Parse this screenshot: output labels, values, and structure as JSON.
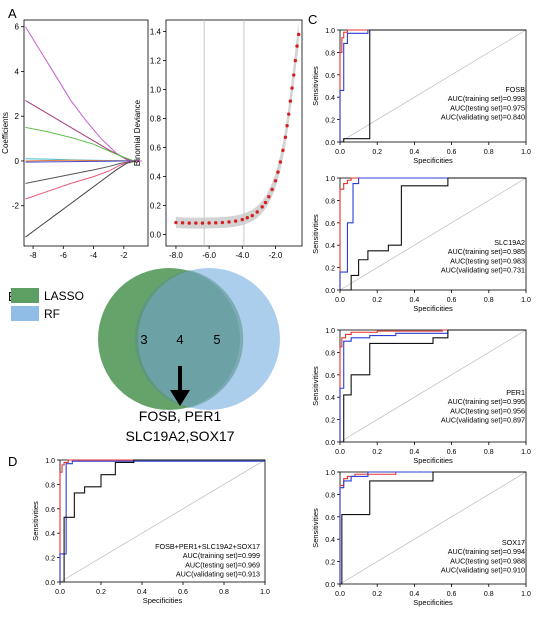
{
  "panels": {
    "a": "A",
    "b": "B",
    "c": "C",
    "d": "D"
  },
  "colors": {
    "red": "#e8322b",
    "blue": "#2c3fd6",
    "black": "#111111",
    "lasso": "#5d9e62",
    "rf": "#8fbde6",
    "ci_band": "#c8c8c8",
    "deviance": "#d62020"
  },
  "chart_data": [
    {
      "id": "lasso_coefficients",
      "type": "line",
      "title": "",
      "xlabel": "",
      "ylabel": "Coefficients",
      "xlim": [
        -8.6,
        -0.4
      ],
      "ylim": [
        -3.8,
        6.3
      ],
      "xticks": [
        -8,
        -6,
        -4,
        -2
      ],
      "yticks": [
        -2,
        0,
        2,
        4,
        6
      ],
      "grid": false,
      "series": [
        {
          "color": "#c85fd2",
          "x": [
            -8.5,
            -7.5,
            -6.5,
            -5.5,
            -4.5,
            -3.5,
            -2.5,
            -1.8,
            -1.2,
            -0.8
          ],
          "values": [
            6.0,
            4.9,
            3.8,
            2.7,
            1.8,
            1.0,
            0.35,
            0.05,
            0.0,
            0.0
          ]
        },
        {
          "color": "#a83a78",
          "x": [
            -8.5,
            -7,
            -5.5,
            -4,
            -3,
            -2,
            -1.5,
            -1
          ],
          "values": [
            2.7,
            2.1,
            1.5,
            0.9,
            0.5,
            0.15,
            0.02,
            0.0
          ]
        },
        {
          "color": "#5fbf4a",
          "x": [
            -8.5,
            -7,
            -5.5,
            -4,
            -3,
            -2.3,
            -1.8,
            -1.3
          ],
          "values": [
            1.5,
            1.3,
            1.05,
            0.75,
            0.45,
            0.25,
            0.12,
            0.0
          ]
        },
        {
          "color": "#3fbfd0",
          "x": [
            -8.5,
            -7,
            -5.5,
            -4,
            -3,
            -2,
            -1.3
          ],
          "values": [
            0.1,
            0.08,
            0.05,
            0.03,
            0.02,
            0.01,
            0.0
          ]
        },
        {
          "color": "#e07a3a",
          "x": [
            -8.5,
            -7,
            -5.5,
            -4,
            -3,
            -2,
            -1.2
          ],
          "values": [
            0.0,
            0.02,
            0.03,
            0.02,
            0.01,
            0.01,
            0.0
          ]
        },
        {
          "color": "#4a4ad0",
          "x": [
            -8.5,
            -7,
            -5.5,
            -4,
            -3,
            -2,
            -1.2
          ],
          "values": [
            -0.05,
            -0.04,
            -0.03,
            -0.02,
            -0.01,
            0.0,
            0.0
          ]
        },
        {
          "color": "#555555",
          "x": [
            -8.5,
            -7,
            -5.5,
            -4,
            -3,
            -2.2,
            -1.7,
            -1.2
          ],
          "values": [
            -1.0,
            -0.8,
            -0.6,
            -0.4,
            -0.25,
            -0.1,
            -0.05,
            0.0
          ]
        },
        {
          "color": "#e85a78",
          "x": [
            -8.5,
            -7,
            -5.5,
            -4,
            -3,
            -2.3,
            -1.8,
            -1.3
          ],
          "values": [
            -1.7,
            -1.35,
            -1.0,
            -0.7,
            -0.45,
            -0.2,
            -0.08,
            0.0
          ]
        },
        {
          "color": "#444444",
          "x": [
            -8.5,
            -7.5,
            -6.5,
            -5.5,
            -4.5,
            -3.5,
            -2.5,
            -1.8,
            -1.2
          ],
          "values": [
            -3.4,
            -2.9,
            -2.4,
            -1.9,
            -1.4,
            -0.9,
            -0.4,
            -0.1,
            0.0
          ]
        }
      ]
    },
    {
      "id": "binomial_deviance",
      "type": "scatter",
      "title": "",
      "xlabel": "",
      "ylabel": "Binomial Deviance",
      "xlim": [
        -8.6,
        -0.4
      ],
      "ylim": [
        -0.08,
        1.48
      ],
      "xticks": [
        -8,
        -6,
        -4,
        -2
      ],
      "yticks": [
        0.0,
        0.2,
        0.4,
        0.6,
        0.8,
        1.0,
        1.2,
        1.4
      ],
      "vlines": [
        -6.3,
        -3.9
      ],
      "band": 0.035,
      "x": [
        -8,
        -7.6,
        -7.2,
        -6.8,
        -6.4,
        -6,
        -5.6,
        -5.2,
        -4.8,
        -4.4,
        -4,
        -3.7,
        -3.4,
        -3.1,
        -2.8,
        -2.6,
        -2.4,
        -2.2,
        -2,
        -1.85,
        -1.7,
        -1.55,
        -1.4,
        -1.3,
        -1.2,
        -1.1,
        -1.0,
        -0.9,
        -0.8,
        -0.7,
        -0.6
      ],
      "values": [
        0.082,
        0.08,
        0.078,
        0.078,
        0.078,
        0.079,
        0.08,
        0.082,
        0.086,
        0.092,
        0.102,
        0.115,
        0.13,
        0.155,
        0.19,
        0.22,
        0.26,
        0.31,
        0.37,
        0.43,
        0.5,
        0.58,
        0.67,
        0.75,
        0.83,
        0.92,
        1.01,
        1.1,
        1.2,
        1.3,
        1.38
      ]
    },
    {
      "id": "roc_fosb",
      "type": "line",
      "title": "",
      "xlabel": "Specificities",
      "ylabel": "Sensitivities",
      "xlim": [
        0,
        1
      ],
      "ylim": [
        0,
        1
      ],
      "xticks": [
        0.0,
        0.2,
        0.4,
        0.6,
        0.8,
        1.0
      ],
      "yticks": [
        0.0,
        0.2,
        0.4,
        0.6,
        0.8,
        1.0
      ],
      "annotation": [
        "FOSB",
        "AUC(training set)=0.993",
        "AUC(testing set)=0.975",
        "AUC(validating set)=0.840"
      ],
      "series": [
        {
          "color": "#e8322b",
          "x": [
            0,
            0,
            0.01,
            0.01,
            0.02,
            0.02,
            0.04,
            0.04,
            1
          ],
          "values": [
            0,
            0.8,
            0.8,
            0.93,
            0.93,
            0.98,
            0.98,
            1,
            1
          ]
        },
        {
          "color": "#2c3fd6",
          "x": [
            0,
            0,
            0.02,
            0.02,
            0.04,
            0.04,
            0.15,
            0.15,
            1
          ],
          "values": [
            0,
            0.46,
            0.46,
            0.88,
            0.88,
            0.97,
            0.97,
            1,
            1
          ]
        },
        {
          "color": "#111111",
          "x": [
            0,
            0.02,
            0.02,
            0.16,
            0.16,
            1
          ],
          "values": [
            0,
            0,
            0.03,
            0.03,
            1,
            1
          ]
        }
      ]
    },
    {
      "id": "roc_slc19a2",
      "type": "line",
      "title": "",
      "xlabel": "Specificities",
      "ylabel": "Sensitivities",
      "xlim": [
        0,
        1
      ],
      "ylim": [
        0,
        1
      ],
      "xticks": [
        0.0,
        0.2,
        0.4,
        0.6,
        0.8,
        1.0
      ],
      "yticks": [
        0.0,
        0.2,
        0.4,
        0.6,
        0.8,
        1.0
      ],
      "annotation": [
        "SLC19A2",
        "AUC(training set)=0.985",
        "AUC(testing set)=0.983",
        "AUC(validating set)=0.731"
      ],
      "series": [
        {
          "color": "#e8322b",
          "x": [
            0,
            0,
            0.02,
            0.02,
            0.04,
            0.04,
            0.06,
            0.06,
            1
          ],
          "values": [
            0,
            0.9,
            0.9,
            0.95,
            0.95,
            0.98,
            0.98,
            1,
            1
          ]
        },
        {
          "color": "#2c3fd6",
          "x": [
            0,
            0,
            0.04,
            0.04,
            0.07,
            0.07,
            0.1,
            0.1,
            1
          ],
          "values": [
            0,
            0.16,
            0.16,
            0.6,
            0.6,
            0.95,
            0.95,
            1,
            1
          ]
        },
        {
          "color": "#111111",
          "x": [
            0,
            0.06,
            0.06,
            0.1,
            0.1,
            0.15,
            0.15,
            0.26,
            0.26,
            0.33,
            0.33,
            0.58,
            0.58,
            1
          ],
          "values": [
            0,
            0,
            0.13,
            0.13,
            0.27,
            0.27,
            0.35,
            0.35,
            0.4,
            0.4,
            0.93,
            0.93,
            1,
            1
          ]
        }
      ]
    },
    {
      "id": "roc_per1",
      "type": "line",
      "title": "",
      "xlabel": "Specificities",
      "ylabel": "Sensitivities",
      "xlim": [
        0,
        1
      ],
      "ylim": [
        0,
        1
      ],
      "xticks": [
        0.0,
        0.2,
        0.4,
        0.6,
        0.8,
        1.0
      ],
      "yticks": [
        0.0,
        0.2,
        0.4,
        0.6,
        0.8,
        1.0
      ],
      "annotation": [
        "PER1",
        "AUC(training set)=0.995",
        "AUC(testing set)=0.956",
        "AUC(validating set)=0.897"
      ],
      "series": [
        {
          "color": "#e8322b",
          "x": [
            0,
            0,
            0.01,
            0.01,
            0.03,
            0.03,
            0.06,
            0.06,
            0.2,
            0.2,
            0.55,
            0.55,
            1
          ],
          "values": [
            0,
            0.85,
            0.85,
            0.93,
            0.93,
            0.96,
            0.96,
            0.98,
            0.98,
            0.99,
            0.99,
            1,
            1
          ]
        },
        {
          "color": "#2c3fd6",
          "x": [
            0,
            0,
            0.02,
            0.02,
            0.06,
            0.06,
            0.16,
            0.16,
            0.3,
            0.3,
            0.58,
            0.58,
            1
          ],
          "values": [
            0,
            0.48,
            0.48,
            0.9,
            0.9,
            0.93,
            0.93,
            0.95,
            0.95,
            0.97,
            0.97,
            1,
            1
          ]
        },
        {
          "color": "#111111",
          "x": [
            0,
            0.02,
            0.02,
            0.06,
            0.06,
            0.16,
            0.16,
            0.5,
            0.5,
            0.58,
            0.58,
            1
          ],
          "values": [
            0,
            0,
            0.42,
            0.42,
            0.6,
            0.6,
            0.88,
            0.88,
            0.93,
            0.93,
            1,
            1
          ]
        }
      ]
    },
    {
      "id": "roc_sox17",
      "type": "line",
      "title": "",
      "xlabel": "Specificities",
      "ylabel": "Sensitivities",
      "xlim": [
        0,
        1
      ],
      "ylim": [
        0,
        1
      ],
      "xticks": [
        0.0,
        0.2,
        0.4,
        0.6,
        0.8,
        1.0
      ],
      "yticks": [
        0.0,
        0.2,
        0.4,
        0.6,
        0.8,
        1.0
      ],
      "annotation": [
        "SOX17",
        "AUC(training set)=0.994",
        "AUC(testing set)=0.988",
        "AUC(validating set)=0.910"
      ],
      "series": [
        {
          "color": "#e8322b",
          "x": [
            0,
            0,
            0.02,
            0.02,
            0.04,
            0.04,
            0.08,
            0.08,
            0.3,
            0.3,
            1
          ],
          "values": [
            0,
            0.88,
            0.88,
            0.94,
            0.94,
            0.96,
            0.96,
            0.98,
            0.98,
            1,
            1
          ]
        },
        {
          "color": "#2c3fd6",
          "x": [
            0,
            0,
            0.02,
            0.02,
            0.06,
            0.06,
            0.15,
            0.15,
            1
          ],
          "values": [
            0,
            0.86,
            0.86,
            0.92,
            0.92,
            0.96,
            0.96,
            1,
            1
          ]
        },
        {
          "color": "#111111",
          "x": [
            0,
            0.01,
            0.01,
            0.16,
            0.16,
            0.5,
            0.5,
            1
          ],
          "values": [
            0,
            0,
            0.62,
            0.62,
            0.92,
            0.92,
            1,
            1
          ]
        }
      ]
    },
    {
      "id": "roc_combined",
      "type": "line",
      "title": "",
      "xlabel": "Specificities",
      "ylabel": "Sensitivities",
      "xlim": [
        0,
        1
      ],
      "ylim": [
        0,
        1
      ],
      "xticks": [
        0.0,
        0.2,
        0.4,
        0.6,
        0.8,
        1.0
      ],
      "yticks": [
        0.0,
        0.2,
        0.4,
        0.6,
        0.8,
        1.0
      ],
      "annotation": [
        "FOSB+PER1+SLC19A2+SOX17",
        "AUC(training set)=0.999",
        "AUC(testing set)=0.969",
        "AUC(validating set)=0.913"
      ],
      "series": [
        {
          "color": "#e8322b",
          "x": [
            0,
            0,
            0.01,
            0.01,
            0.02,
            0.02,
            0.04,
            0.04,
            1
          ],
          "values": [
            0,
            0.9,
            0.9,
            0.96,
            0.96,
            0.98,
            0.98,
            1,
            1
          ]
        },
        {
          "color": "#2c3fd6",
          "x": [
            0,
            0,
            0.03,
            0.03,
            0.06,
            0.06,
            1
          ],
          "values": [
            0,
            0.23,
            0.23,
            0.97,
            0.97,
            0.99,
            0.99
          ]
        },
        {
          "color": "#111111",
          "x": [
            0,
            0.02,
            0.02,
            0.07,
            0.07,
            0.12,
            0.12,
            0.2,
            0.2,
            0.27,
            0.27,
            0.36,
            0.36,
            1
          ],
          "values": [
            0,
            0,
            0.53,
            0.53,
            0.73,
            0.73,
            0.78,
            0.78,
            0.88,
            0.88,
            0.98,
            0.98,
            1,
            1
          ]
        }
      ]
    }
  ],
  "venn": {
    "legend": [
      {
        "label": "LASSO",
        "color": "#5d9e62"
      },
      {
        "label": "RF",
        "color": "#8fbde6"
      }
    ],
    "left_only": "3",
    "overlap": "4",
    "right_only": "5",
    "genes_line1": "FOSB, PER1",
    "genes_line2": "SLC19A2,SOX17"
  }
}
